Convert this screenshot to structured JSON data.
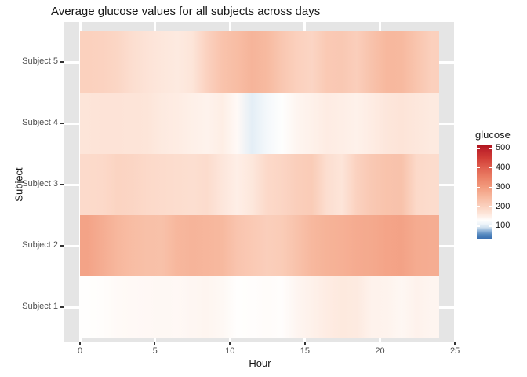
{
  "title": "Average glucose values for all subjects across days",
  "x_axis": {
    "title": "Hour",
    "tick_labels": [
      "0",
      "5",
      "10",
      "15",
      "20",
      "25"
    ],
    "tick_values": [
      0,
      5,
      10,
      15,
      20,
      25
    ]
  },
  "y_axis": {
    "title": "Subject",
    "labels_top_to_bottom": [
      "Subject 5",
      "Subject 4",
      "Subject 3",
      "Subject 2",
      "Subject 1"
    ]
  },
  "legend": {
    "title": "glucose",
    "tick_labels": [
      "500",
      "400",
      "300",
      "200",
      "100"
    ],
    "tick_values": [
      500,
      400,
      300,
      200,
      100
    ],
    "bar_value_range": [
      516,
      35
    ]
  },
  "colors": {
    "panel_bg": "#e5e5e5",
    "gridline": "#ffffff",
    "tick_mark": "#333333",
    "tick_label": "#4d4d4d",
    "text": "#161616"
  },
  "chart_data": {
    "type": "heatmap",
    "title": "Average glucose values for all subjects across days",
    "xlabel": "Hour",
    "ylabel": "Subject",
    "x_hours": [
      0,
      1,
      2,
      3,
      4,
      5,
      6,
      7,
      8,
      9,
      10,
      11,
      12,
      13,
      14,
      15,
      16,
      17,
      18,
      19,
      20,
      21,
      22,
      23
    ],
    "xlim": [
      -1.1,
      25.1
    ],
    "x_data_range": [
      0,
      24
    ],
    "row_order": "top-to-bottom",
    "series": [
      {
        "name": "Subject 5",
        "values": [
          203,
          200,
          193,
          177,
          168,
          162,
          158,
          165,
          202,
          230,
          243,
          258,
          248,
          223,
          205,
          195,
          218,
          220,
          208,
          232,
          252,
          250,
          227,
          205
        ]
      },
      {
        "name": "Subject 4",
        "values": [
          165,
          168,
          168,
          167,
          165,
          158,
          155,
          150,
          147,
          153,
          137,
          105,
          118,
          129,
          143,
          148,
          155,
          152,
          148,
          155,
          163,
          167,
          162,
          158
        ]
      },
      {
        "name": "Subject 3",
        "values": [
          185,
          188,
          197,
          195,
          188,
          183,
          180,
          177,
          182,
          163,
          152,
          162,
          188,
          195,
          208,
          213,
          178,
          165,
          202,
          220,
          230,
          232,
          188,
          182
        ]
      },
      {
        "name": "Subject 2",
        "values": [
          287,
          270,
          253,
          242,
          237,
          235,
          253,
          258,
          255,
          250,
          228,
          218,
          208,
          213,
          232,
          252,
          260,
          265,
          273,
          277,
          285,
          288,
          273,
          270
        ]
      },
      {
        "name": "Subject 1",
        "values": [
          130,
          132,
          136,
          137,
          138,
          139,
          138,
          141,
          143,
          139,
          130,
          131,
          133,
          131,
          142,
          148,
          155,
          160,
          158,
          147,
          146,
          140,
          147,
          143
        ]
      }
    ],
    "color_scale": {
      "legend_title": "glucose",
      "low_color": "#3a6fb0",
      "mid_color": "#fffefd",
      "high_color": "#b0161e",
      "anchors": [
        [
          516,
          "#b0161e"
        ],
        [
          500,
          "#bc2029"
        ],
        [
          450,
          "#d13d36"
        ],
        [
          400,
          "#e06050"
        ],
        [
          350,
          "#eb8066"
        ],
        [
          300,
          "#f29b7e"
        ],
        [
          250,
          "#f7b99f"
        ],
        [
          200,
          "#fbd2c0"
        ],
        [
          165,
          "#fde5d9"
        ],
        [
          130,
          "#fffefd"
        ],
        [
          112,
          "#eff5fa"
        ],
        [
          95,
          "#d4e4f1"
        ],
        [
          75,
          "#8fb3d8"
        ],
        [
          55,
          "#5185bd"
        ],
        [
          35,
          "#3a6fb0"
        ]
      ]
    },
    "legend_position": "right",
    "grid": "major-white-on-gray"
  }
}
